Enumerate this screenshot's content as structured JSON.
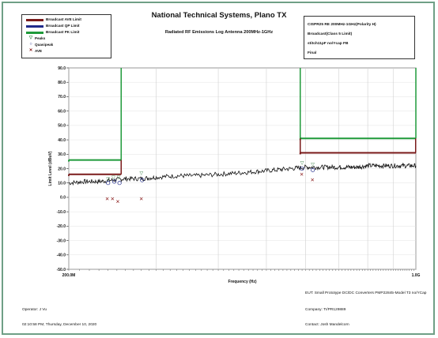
{
  "header": {
    "title": "National Technical Systems, Plano TX",
    "subtitle": "Radiated RF Emissions Log Antenna 200MHz-1GHz"
  },
  "legend": [
    {
      "label": "Broadcast AVE Limit",
      "kind": "line",
      "color": "#7a1a1a"
    },
    {
      "label": "Broadcast QP Limit",
      "kind": "line",
      "color": "#1f2a8a"
    },
    {
      "label": "Broadcast PK Limit",
      "kind": "line",
      "color": "#1f9a3a"
    },
    {
      "label": "Peaks",
      "kind": "symbol",
      "symbol": "▽",
      "color": "#2a7a3a"
    },
    {
      "label": "Quasipeak",
      "kind": "symbol",
      "symbol": "○",
      "color": "#1f2a8a"
    },
    {
      "label": "AVE",
      "kind": "symbol",
      "symbol": "✕",
      "color": "#8a1a1a"
    }
  ],
  "info": {
    "line1": "CISPR25 RE 200MHz-1GHz(Polarity H)",
    "line2": "Broadcast(Class 5 Limit)",
    "line3": "stitch11pF no/Ycap FB",
    "line4": "Final"
  },
  "footer": {
    "eut": "EUT: Small Prototype DC/DC Converters PMP22845-Model T3 no/YCap",
    "operator": "Operator: J Vu",
    "company": "Company: TI/PR129889",
    "timestamp": "02:10:58 PM, Thursday, December 10, 2020",
    "contact": "Contact: Josh Mandelcorn"
  },
  "chart_data": {
    "type": "line",
    "xlabel": "Frequency (Hz)",
    "ylabel": "Limit Level (dBuV)",
    "xscale": "log",
    "xlim": [
      200,
      1000
    ],
    "ylim": [
      -50,
      90
    ],
    "yticks": [
      90.0,
      80.0,
      70.0,
      60.0,
      50.0,
      40.0,
      30.0,
      20.0,
      10.0,
      0.0,
      -10.0,
      -20.0,
      -30.0,
      -40.0,
      -50.0
    ],
    "ytick_labels": [
      "90.0",
      "80.0",
      "70.0",
      "60.0",
      "50.0",
      "40.0",
      "30.0",
      "20.0",
      "10.0",
      "0.0",
      "-10.0",
      "-20.0",
      "-30.0",
      "-40.0",
      "-50.0"
    ],
    "xtick_labels": [
      {
        "x": 200,
        "label": "200.0M"
      },
      {
        "x": 1000,
        "label": "1.0G"
      }
    ],
    "grid": true,
    "limits": [
      {
        "name": "Broadcast PK Limit",
        "color": "#1f9a3a",
        "segments": [
          {
            "x": [
              200,
              255
            ],
            "y": 26
          },
          {
            "x": [
              585,
              1000
            ],
            "y": 41
          }
        ],
        "edges": [
          255,
          585,
          1000
        ]
      },
      {
        "name": "Broadcast AVE Limit",
        "color": "#7a1a1a",
        "segments": [
          {
            "x": [
              200,
              255
            ],
            "y": 16
          },
          {
            "x": [
              585,
              1000
            ],
            "y": 31
          }
        ]
      }
    ],
    "trace": {
      "name": "Measured",
      "color": "#111111",
      "x": [
        200,
        215,
        230,
        245,
        260,
        280,
        300,
        330,
        360,
        400,
        440,
        480,
        520,
        560,
        600,
        640,
        680,
        720,
        760,
        800,
        850,
        900,
        950,
        1000
      ],
      "y": [
        10,
        11,
        11,
        12,
        13,
        13,
        14,
        15,
        15,
        16,
        17,
        18,
        19,
        20,
        21,
        21,
        21,
        21,
        21,
        22,
        22,
        22,
        22,
        22
      ]
    },
    "peaks": {
      "x": [
        240,
        246,
        252,
        280,
        590,
        620
      ],
      "y": [
        13,
        14,
        14,
        17,
        24,
        23
      ]
    },
    "quasipeak": {
      "x": [
        240,
        247,
        253,
        281,
        590,
        620
      ],
      "y": [
        10,
        11,
        10,
        12,
        20,
        19
      ]
    },
    "ave": {
      "x": [
        239,
        245,
        251,
        280,
        589,
        619
      ],
      "y": [
        -1,
        -1,
        -3,
        -1,
        16,
        12
      ]
    }
  }
}
